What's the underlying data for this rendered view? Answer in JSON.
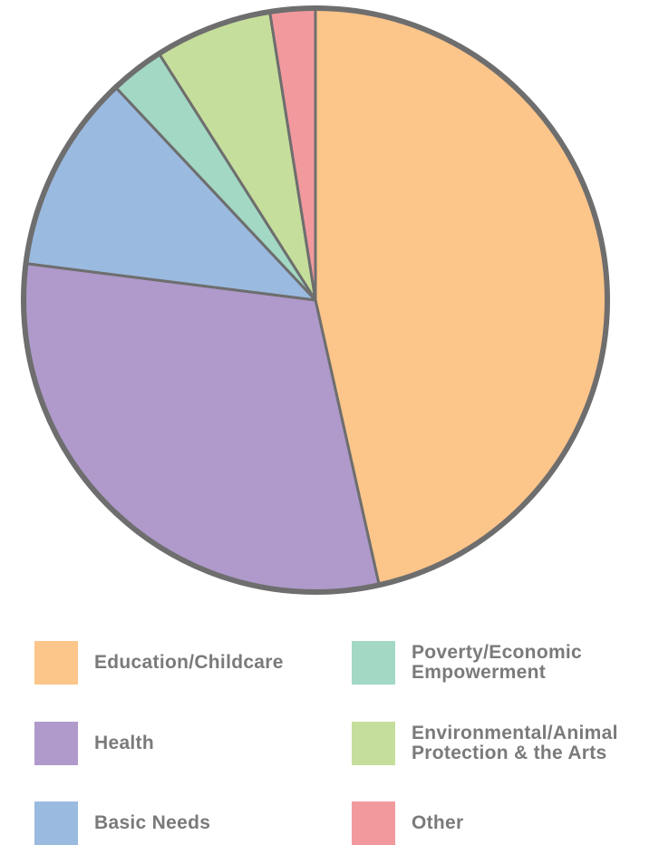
{
  "chart_data": {
    "type": "pie",
    "slices": [
      {
        "label": "Education/Childcare",
        "value": 46.5,
        "color": "#FCC58A"
      },
      {
        "label": "Health",
        "value": 30.5,
        "color": "#AF9ACB"
      },
      {
        "label": "Basic Needs",
        "value": 11.0,
        "color": "#9BBAE0"
      },
      {
        "label": "Poverty/Economic\nEmpowerment",
        "value": 3.0,
        "color": "#A2D8C4"
      },
      {
        "label": "Environmental/Animal\nProtection & the Arts",
        "value": 6.5,
        "color": "#C6DE9B"
      },
      {
        "label": "Other",
        "value": 2.5,
        "color": "#F2999E"
      }
    ],
    "start_angle_deg": 0,
    "direction": "clockwise",
    "outline_color": "#6E6E6E",
    "legend_placement": "bottom"
  }
}
